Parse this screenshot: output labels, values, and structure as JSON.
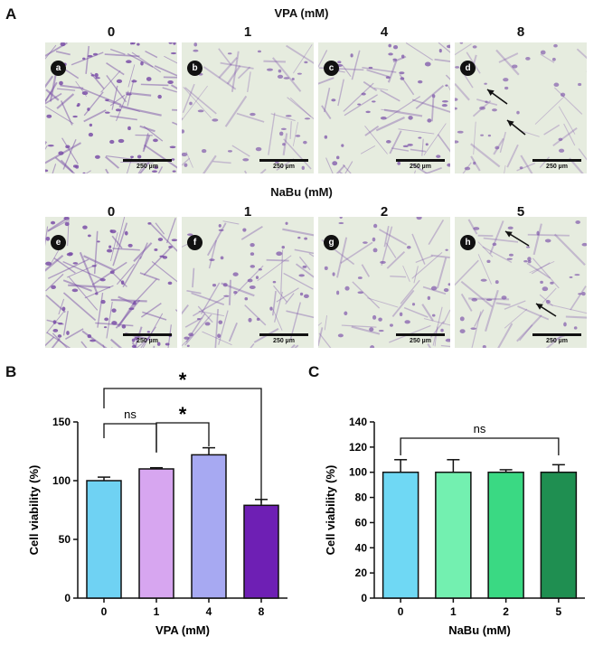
{
  "panels": {
    "A": {
      "letter": "A",
      "rows": [
        {
          "title": "VPA (mM)",
          "columns": [
            "0",
            "1",
            "4",
            "8"
          ],
          "subpanels": [
            "a",
            "b",
            "c",
            "d"
          ],
          "scale": "250 µm",
          "densities": [
            1.0,
            0.5,
            0.7,
            0.45
          ],
          "arrows_on": 3
        },
        {
          "title": "NaBu (mM)",
          "columns": [
            "0",
            "1",
            "2",
            "5"
          ],
          "subpanels": [
            "e",
            "f",
            "g",
            "h"
          ],
          "scale": "250 µm",
          "densities": [
            1.0,
            0.65,
            0.55,
            0.5
          ],
          "arrows_on": 3
        }
      ],
      "colors": {
        "background": "#e6ecdf",
        "stain": "#7a4fa8"
      }
    },
    "B": {
      "letter": "B"
    },
    "C": {
      "letter": "C"
    }
  },
  "chart_data": [
    {
      "type": "bar",
      "panel": "B",
      "categories": [
        "0",
        "1",
        "4",
        "8"
      ],
      "values": [
        100,
        110,
        122,
        79
      ],
      "errors": [
        3,
        1,
        6,
        5
      ],
      "colors": [
        "#6fd2f3",
        "#d7a6f0",
        "#a7a9f2",
        "#6e1fb4"
      ],
      "xlabel": "VPA (mM)",
      "ylabel": "Cell viability (%)",
      "ylim": [
        0,
        150
      ],
      "yticks": [
        "0",
        "50",
        "100",
        "150"
      ],
      "significance": [
        {
          "from": 0,
          "to": 1,
          "label": "ns"
        },
        {
          "from": 1,
          "to": 2,
          "label": "*"
        },
        {
          "from": 0,
          "to": 3,
          "label": "*"
        }
      ]
    },
    {
      "type": "bar",
      "panel": "C",
      "categories": [
        "0",
        "1",
        "2",
        "5"
      ],
      "values": [
        100,
        100,
        100,
        100
      ],
      "errors": [
        10,
        10,
        2,
        6
      ],
      "colors": [
        "#6fd8f4",
        "#73f0b0",
        "#3ad983",
        "#1f8f51"
      ],
      "xlabel": "NaBu (mM)",
      "ylabel": "Cell viability (%)",
      "ylim": [
        0,
        140
      ],
      "yticks": [
        "0",
        "20",
        "40",
        "60",
        "80",
        "100",
        "120",
        "140"
      ],
      "significance": [
        {
          "from": 0,
          "to": 3,
          "label": "ns"
        }
      ]
    }
  ]
}
